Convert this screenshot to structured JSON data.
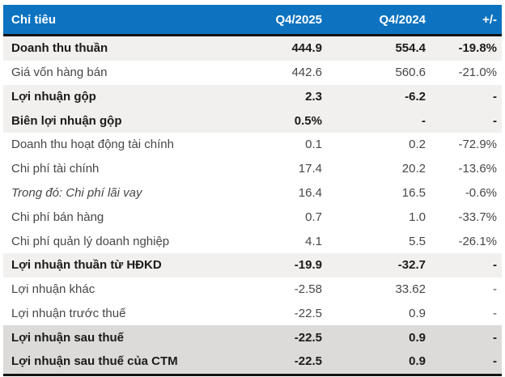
{
  "colors": {
    "header_bg": "#0d73c0",
    "header_text": "#ffffff",
    "row_gray": "#f1f0ee",
    "row_darkgray": "#dcdbd9",
    "border_dark": "#131313",
    "text_bold": "#1b1b1b",
    "text_normal": "#474747"
  },
  "chart_data": {
    "type": "table",
    "columns": [
      "Chỉ tiêu",
      "Q4/2025",
      "Q4/2024",
      "+/-"
    ],
    "rows": [
      {
        "label": "Doanh thu thuần",
        "q4_2025": "444.9",
        "q4_2024": "554.4",
        "change": "-19.8%",
        "style": "bold-gray"
      },
      {
        "label": "Giá vốn hàng bán",
        "q4_2025": "442.6",
        "q4_2024": "560.6",
        "change": "-21.0%",
        "style": "normal"
      },
      {
        "label": "Lợi nhuận gộp",
        "q4_2025": "2.3",
        "q4_2024": "-6.2",
        "change": "-",
        "style": "bold-gray"
      },
      {
        "label": "Biên lợi nhuận gộp",
        "q4_2025": "0.5%",
        "q4_2024": "-",
        "change": "-",
        "style": "bold-gray"
      },
      {
        "label": "Doanh thu hoạt động tài chính",
        "q4_2025": "0.1",
        "q4_2024": "0.2",
        "change": "-72.9%",
        "style": "normal"
      },
      {
        "label": "Chi phí tài chính",
        "q4_2025": "17.4",
        "q4_2024": "20.2",
        "change": "-13.6%",
        "style": "normal"
      },
      {
        "label": "Trong đó: Chi phí lãi vay",
        "q4_2025": "16.4",
        "q4_2024": "16.5",
        "change": "-0.6%",
        "style": "italic"
      },
      {
        "label": "Chi phí bán hàng",
        "q4_2025": "0.7",
        "q4_2024": "1.0",
        "change": "-33.7%",
        "style": "normal"
      },
      {
        "label": "Chi phí quản lý doanh nghiệp",
        "q4_2025": "4.1",
        "q4_2024": "5.5",
        "change": "-26.1%",
        "style": "normal"
      },
      {
        "label": "Lợi nhuận thuần từ HĐKD",
        "q4_2025": "-19.9",
        "q4_2024": "-32.7",
        "change": "-",
        "style": "bold-gray"
      },
      {
        "label": "Lợi nhuận khác",
        "q4_2025": "-2.58",
        "q4_2024": "33.62",
        "change": "-",
        "style": "normal"
      },
      {
        "label": "Lợi nhuận trước thuế",
        "q4_2025": "-22.5",
        "q4_2024": "0.9",
        "change": "-",
        "style": "normal"
      },
      {
        "label": "Lợi nhuận sau thuế",
        "q4_2025": "-22.5",
        "q4_2024": "0.9",
        "change": "-",
        "style": "bold-darkgray"
      },
      {
        "label": "Lợi nhuận sau thuế của CTM",
        "q4_2025": "-22.5",
        "q4_2024": "0.9",
        "change": "-",
        "style": "bold-darkgray"
      }
    ]
  }
}
